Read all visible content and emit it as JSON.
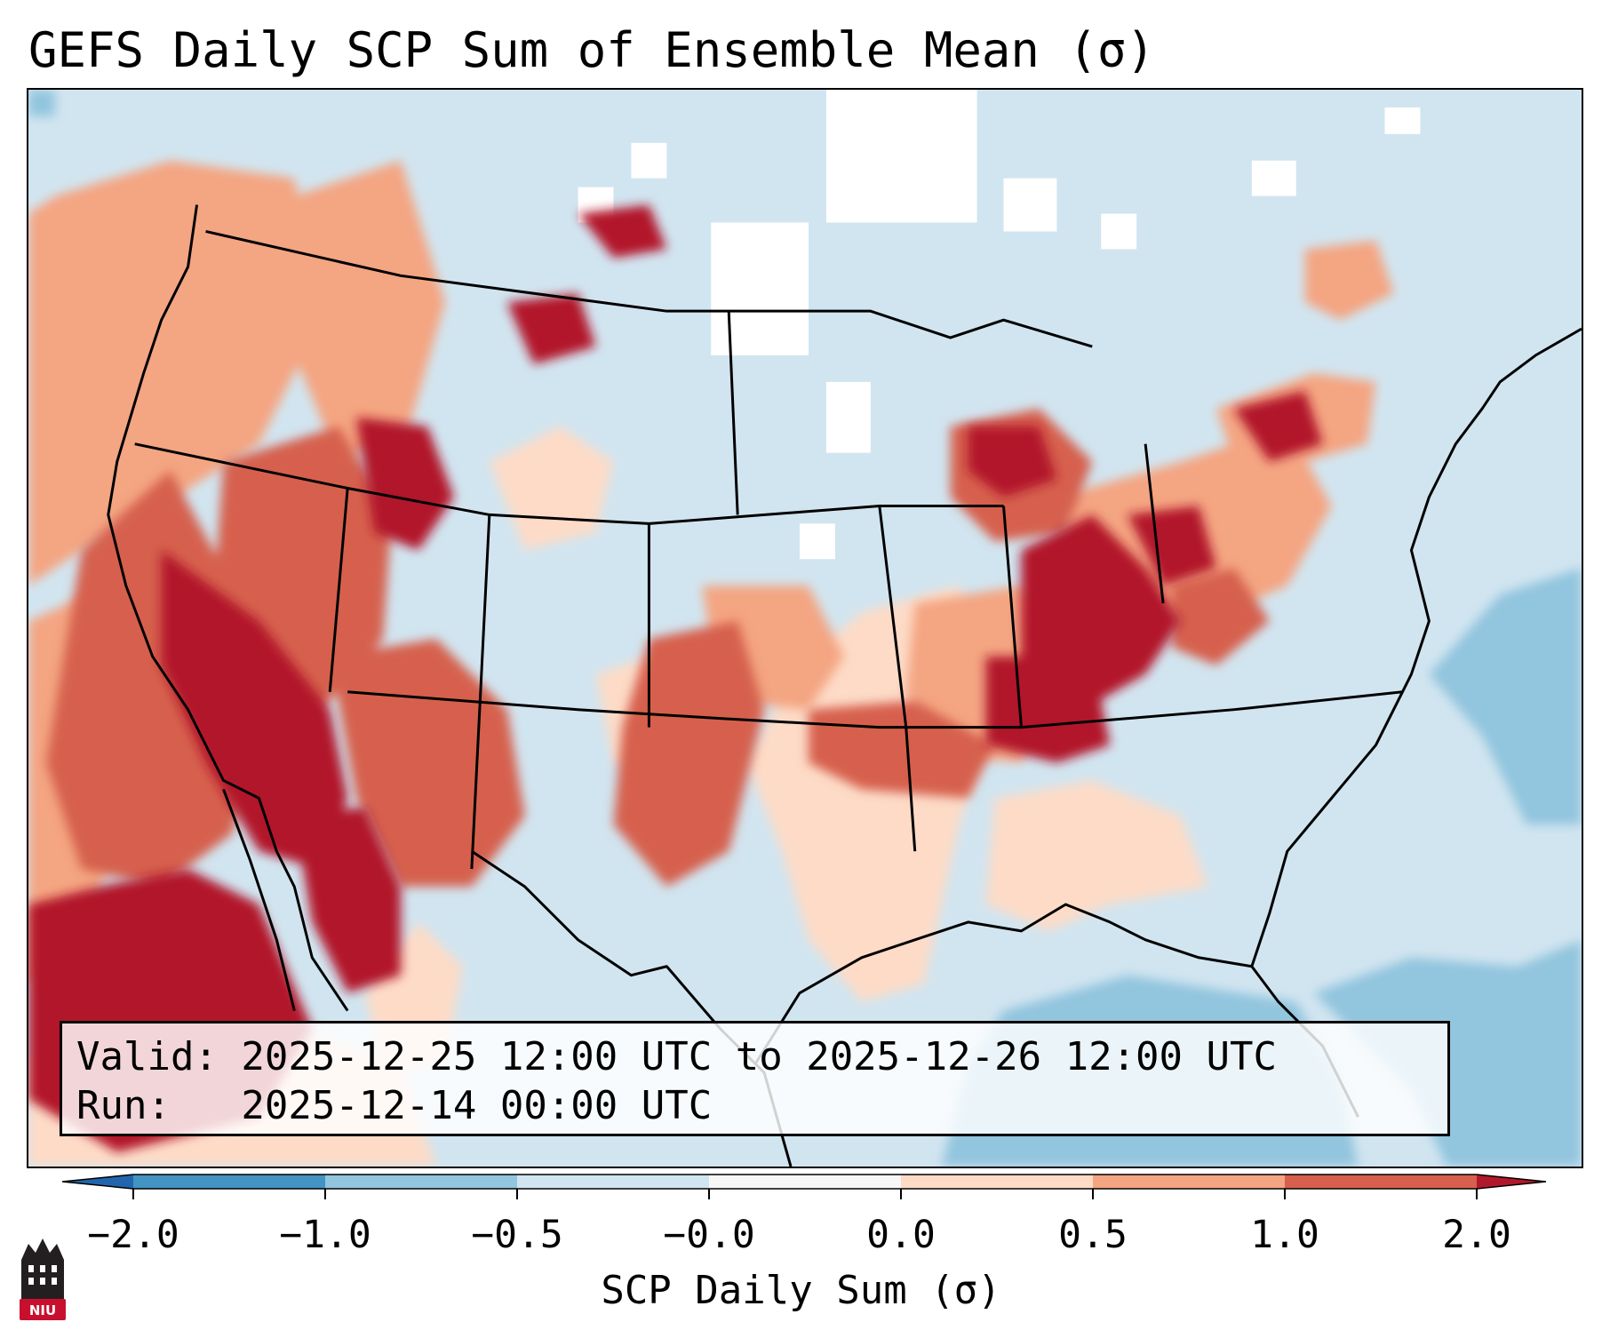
{
  "title": "GEFS Daily SCP Sum of Ensemble Mean (σ)",
  "map": {
    "region": "Contiguous United States",
    "variable": "SCP daily sum, ensemble mean anomaly",
    "highlights": [
      {
        "area": "Ohio and Tennessee Valleys",
        "category": "≥ 1.0"
      },
      {
        "area": "Southwest and Baja California",
        "category": "≥ 1.0"
      },
      {
        "area": "Great Basin",
        "category": "≥ 1.0"
      },
      {
        "area": "Southern Plains and Lower Mississippi Valley",
        "category": "0.0 to 1.0"
      },
      {
        "area": "Gulf of Mexico and Western Atlantic",
        "category": "-1.0 to -0.5"
      }
    ]
  },
  "info": {
    "valid_line": "Valid: 2025-12-25 12:00 UTC to 2025-12-26 12:00 UTC",
    "run_line": "Run:   2025-12-14 00:00 UTC"
  },
  "colorbar": {
    "ticks": [
      "−2.0",
      "−1.0",
      "−0.5",
      "−0.0",
      "0.0",
      "0.5",
      "1.0",
      "2.0"
    ],
    "label": "SCP Daily Sum (σ)",
    "colors": {
      "under": "#2166ac",
      "bins": [
        "#4393c3",
        "#92c5de",
        "#d1e5f0",
        "#f7f7f7",
        "#fddbc7",
        "#f4a582",
        "#d6604d"
      ],
      "over": "#b2182b"
    }
  },
  "logo": {
    "text": "NIU",
    "color": "#c8102e"
  }
}
